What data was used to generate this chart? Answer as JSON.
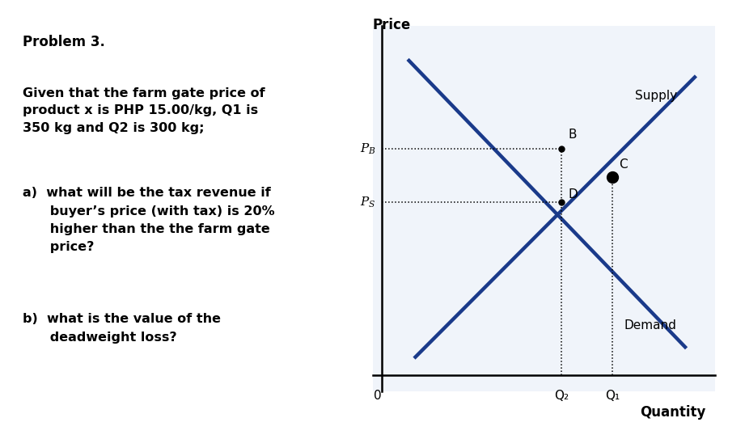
{
  "background_color": "#ffffff",
  "chart_bg": "#f0f4fa",
  "fig_width": 9.21,
  "fig_height": 5.38,
  "dpi": 100,
  "left_text": {
    "problem": "Problem 3.",
    "body": "Given that the farm gate price of\nproduct x is PHP 15.00/kg, Q1 is\n350 kg and Q2 is 300 kg;",
    "a": "a)  what will be the tax revenue if\n      buyer’s price (with tax) is 20%\n      higher than the the farm gate\n      price?",
    "b": "b)  what is the value of the\n      deadweight loss?"
  },
  "chart": {
    "xlabel": "Quantity",
    "ylabel": "Price",
    "supply_label": "Supply",
    "demand_label": "Demand",
    "line_color": "#1a3a8a",
    "line_width": 3.2,
    "dot_color": "#000000",
    "PB_label": "$P_B$",
    "PS_label": "$P_S$",
    "Q1_label": "Q₁",
    "Q2_label": "Q₂",
    "B_label": "B",
    "C_label": "C",
    "D_label": "D",
    "xmin": 0,
    "xmax": 10,
    "ymin": 0,
    "ymax": 10,
    "Q1": 7.2,
    "Q2": 5.6,
    "PB": 6.8,
    "PS": 5.2,
    "eq_x": 7.2,
    "eq_y": 5.95,
    "supply_x0": 1.0,
    "supply_y0": 0.5,
    "supply_x1": 9.8,
    "supply_y1": 9.0,
    "demand_x0": 0.8,
    "demand_y0": 9.5,
    "demand_x1": 9.5,
    "demand_y1": 0.8
  }
}
